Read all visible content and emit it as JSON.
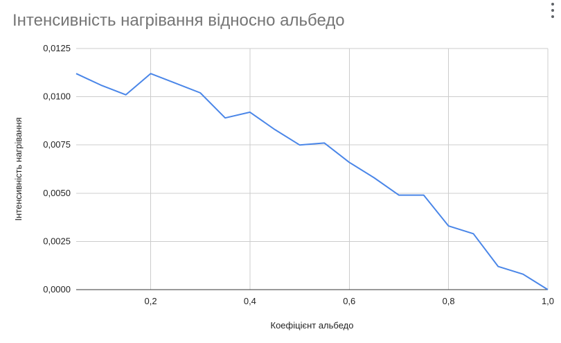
{
  "chart_data": {
    "type": "line",
    "title": "Інтенсивність нагрівання відносно альбедо",
    "xlabel": "Коефіцієнт альбедо",
    "ylabel": "Інтенсивність нагрівання",
    "xlim": [
      0.05,
      1.0
    ],
    "ylim": [
      0,
      0.0125
    ],
    "grid": true,
    "line_color": "#4a86e8",
    "x_ticks": [
      0.2,
      0.4,
      0.6,
      0.8,
      1.0
    ],
    "x_tick_labels": [
      "0,2",
      "0,4",
      "0,6",
      "0,8",
      "1,0"
    ],
    "y_ticks": [
      0,
      0.0025,
      0.005,
      0.0075,
      0.01,
      0.0125
    ],
    "y_tick_labels": [
      "0,0000",
      "0,0025",
      "0,0050",
      "0,0075",
      "0,0100",
      "0,0125"
    ],
    "series": [
      {
        "x": [
          0.05,
          0.1,
          0.15,
          0.2,
          0.25,
          0.3,
          0.35,
          0.4,
          0.45,
          0.5,
          0.55,
          0.6,
          0.65,
          0.7,
          0.75,
          0.8,
          0.85,
          0.9,
          0.95,
          1.0
        ],
        "values": [
          0.0112,
          0.0106,
          0.0101,
          0.0112,
          0.0107,
          0.0102,
          0.0089,
          0.0092,
          0.0083,
          0.0075,
          0.0076,
          0.0066,
          0.0058,
          0.0049,
          0.0049,
          0.0033,
          0.0029,
          0.0012,
          0.0008,
          0.0
        ]
      }
    ]
  }
}
